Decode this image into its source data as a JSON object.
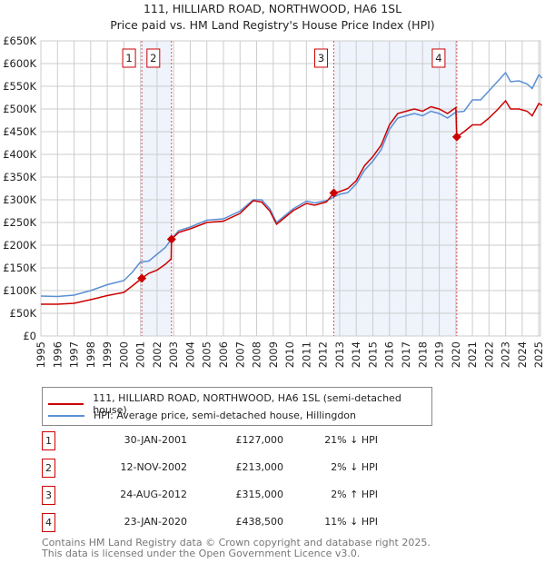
{
  "chart_data": {
    "type": "line",
    "title": "111, HILLIARD ROAD, NORTHWOOD, HA6 1SL",
    "subtitle": "Price paid vs. HM Land Registry's House Price Index (HPI)",
    "xlim": [
      1995,
      2025.2
    ],
    "ylim": [
      0,
      650000
    ],
    "x_ticks": [
      "1995",
      "1996",
      "1997",
      "1998",
      "1999",
      "2000",
      "2001",
      "2002",
      "2003",
      "2004",
      "2005",
      "2006",
      "2007",
      "2008",
      "2009",
      "2010",
      "2011",
      "2012",
      "2013",
      "2014",
      "2015",
      "2016",
      "2017",
      "2018",
      "2019",
      "2020",
      "2021",
      "2022",
      "2023",
      "2024",
      "2025"
    ],
    "y_ticks": [
      {
        "v": 0,
        "l": "£0"
      },
      {
        "v": 50000,
        "l": "£50K"
      },
      {
        "v": 100000,
        "l": "£100K"
      },
      {
        "v": 150000,
        "l": "£150K"
      },
      {
        "v": 200000,
        "l": "£200K"
      },
      {
        "v": 250000,
        "l": "£250K"
      },
      {
        "v": 300000,
        "l": "£300K"
      },
      {
        "v": 350000,
        "l": "£350K"
      },
      {
        "v": 400000,
        "l": "£400K"
      },
      {
        "v": 450000,
        "l": "£450K"
      },
      {
        "v": 500000,
        "l": "£500K"
      },
      {
        "v": 550000,
        "l": "£550K"
      },
      {
        "v": 600000,
        "l": "£600K"
      },
      {
        "v": 650000,
        "l": "£650K"
      }
    ],
    "grid": true,
    "colors": {
      "property": "#cc0000",
      "hpi": "#5b8fd4",
      "shade": "#eef3fc"
    },
    "series": [
      {
        "name": "111, HILLIARD ROAD, NORTHWOOD, HA6 1SL (semi-detached house)",
        "key": "property",
        "points": [
          [
            1995,
            70
          ],
          [
            1996,
            70
          ],
          [
            1997,
            72
          ],
          [
            1998,
            80
          ],
          [
            1999,
            89
          ],
          [
            2000,
            96
          ],
          [
            2000.5,
            110
          ],
          [
            2001.08,
            127
          ],
          [
            2001.5,
            138
          ],
          [
            2002,
            145
          ],
          [
            2002.5,
            158
          ],
          [
            2002.85,
            170
          ],
          [
            2002.87,
            213
          ],
          [
            2003.3,
            228
          ],
          [
            2004,
            236
          ],
          [
            2005,
            250
          ],
          [
            2006,
            253
          ],
          [
            2007,
            270
          ],
          [
            2007.8,
            298
          ],
          [
            2008.3,
            295
          ],
          [
            2008.8,
            275
          ],
          [
            2009.2,
            246
          ],
          [
            2009.6,
            258
          ],
          [
            2010.2,
            276
          ],
          [
            2011,
            292
          ],
          [
            2011.5,
            288
          ],
          [
            2012.2,
            295
          ],
          [
            2012.65,
            315
          ],
          [
            2013,
            318
          ],
          [
            2013.5,
            325
          ],
          [
            2014,
            342
          ],
          [
            2014.5,
            375
          ],
          [
            2015,
            395
          ],
          [
            2015.5,
            420
          ],
          [
            2016,
            465
          ],
          [
            2016.5,
            490
          ],
          [
            2017,
            495
          ],
          [
            2017.5,
            500
          ],
          [
            2018,
            495
          ],
          [
            2018.5,
            505
          ],
          [
            2019,
            500
          ],
          [
            2019.5,
            490
          ],
          [
            2020.0,
            503
          ],
          [
            2020.06,
            438.5
          ],
          [
            2020.5,
            450
          ],
          [
            2021,
            465
          ],
          [
            2021.5,
            465
          ],
          [
            2022,
            480
          ],
          [
            2022.5,
            498
          ],
          [
            2023,
            518
          ],
          [
            2023.3,
            500
          ],
          [
            2023.8,
            500
          ],
          [
            2024.3,
            495
          ],
          [
            2024.6,
            485
          ],
          [
            2025,
            512
          ],
          [
            2025.2,
            508
          ]
        ]
      },
      {
        "name": "HPI: Average price, semi-detached house, Hillingdon",
        "key": "hpi",
        "points": [
          [
            1995,
            88
          ],
          [
            1996,
            87
          ],
          [
            1997,
            90
          ],
          [
            1998,
            100
          ],
          [
            1999,
            113
          ],
          [
            2000,
            122
          ],
          [
            2000.5,
            140
          ],
          [
            2001,
            163
          ],
          [
            2001.5,
            165
          ],
          [
            2002,
            180
          ],
          [
            2002.5,
            195
          ],
          [
            2002.9,
            215
          ],
          [
            2003.3,
            232
          ],
          [
            2004,
            240
          ],
          [
            2005,
            255
          ],
          [
            2006,
            258
          ],
          [
            2007,
            275
          ],
          [
            2007.8,
            300
          ],
          [
            2008.3,
            300
          ],
          [
            2008.8,
            280
          ],
          [
            2009.2,
            250
          ],
          [
            2009.6,
            262
          ],
          [
            2010.2,
            280
          ],
          [
            2011,
            297
          ],
          [
            2011.5,
            293
          ],
          [
            2012.2,
            298
          ],
          [
            2012.6,
            305
          ],
          [
            2013,
            312
          ],
          [
            2013.5,
            316
          ],
          [
            2014,
            335
          ],
          [
            2014.5,
            365
          ],
          [
            2015,
            385
          ],
          [
            2015.5,
            410
          ],
          [
            2016,
            455
          ],
          [
            2016.5,
            480
          ],
          [
            2017,
            485
          ],
          [
            2017.5,
            490
          ],
          [
            2018,
            485
          ],
          [
            2018.5,
            495
          ],
          [
            2019,
            490
          ],
          [
            2019.5,
            480
          ],
          [
            2020,
            493
          ],
          [
            2020.5,
            495
          ],
          [
            2021,
            520
          ],
          [
            2021.5,
            520
          ],
          [
            2022,
            540
          ],
          [
            2022.5,
            560
          ],
          [
            2023,
            580
          ],
          [
            2023.3,
            560
          ],
          [
            2023.8,
            562
          ],
          [
            2024.3,
            555
          ],
          [
            2024.6,
            545
          ],
          [
            2025,
            575
          ],
          [
            2025.2,
            568
          ]
        ]
      }
    ],
    "value_unit": "thousand GBP",
    "sales": [
      {
        "n": "1",
        "x": 2001.08,
        "y": 127,
        "date": "30-JAN-2001",
        "price": "£127,000",
        "delta": "21% ↓ HPI"
      },
      {
        "n": "2",
        "x": 2002.87,
        "y": 213,
        "date": "12-NOV-2002",
        "price": "£213,000",
        "delta": "2% ↓ HPI"
      },
      {
        "n": "3",
        "x": 2012.65,
        "y": 315,
        "date": "24-AUG-2012",
        "price": "£315,000",
        "delta": "2% ↑ HPI"
      },
      {
        "n": "4",
        "x": 2020.06,
        "y": 438.5,
        "date": "23-JAN-2020",
        "price": "£438,500",
        "delta": "11% ↓ HPI"
      }
    ],
    "shaded_ranges": [
      [
        2001.08,
        2002.87
      ],
      [
        2012.65,
        2020.06
      ]
    ],
    "legend": {
      "placement": "below",
      "items": [
        "111, HILLIARD ROAD, NORTHWOOD, HA6 1SL (semi-detached house)",
        "HPI: Average price, semi-detached house, Hillingdon"
      ]
    }
  },
  "footer": {
    "line1": "Contains HM Land Registry data © Crown copyright and database right 2025.",
    "line2": "This data is licensed under the Open Government Licence v3.0."
  }
}
